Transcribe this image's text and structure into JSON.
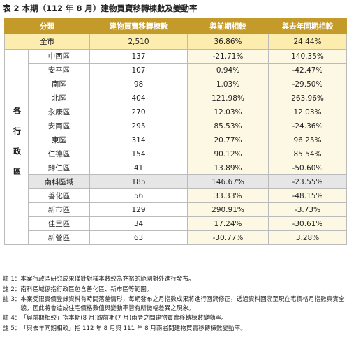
{
  "title": "表 2 本期（112 年 8 月）建物買賣移轉棟數及變動率",
  "table": {
    "headers": [
      "分類",
      "建物買賣移轉棟數",
      "與前期相較",
      "與去年同期相較"
    ],
    "total_row": [
      "全市",
      "2,510",
      "36.86%",
      "24.44%"
    ],
    "group_label": "各行政區",
    "rows": [
      [
        "中西區",
        "137",
        "-21.71%",
        "140.35%"
      ],
      [
        "安平區",
        "107",
        "0.94%",
        "-42.47%"
      ],
      [
        "南區",
        "98",
        "1.03%",
        "-29.50%"
      ],
      [
        "北區",
        "404",
        "121.98%",
        "263.96%"
      ],
      [
        "永康區",
        "270",
        "12.03%",
        "12.03%"
      ],
      [
        "安南區",
        "295",
        "85.53%",
        "-24.36%"
      ],
      [
        "東區",
        "314",
        "20.77%",
        "96.25%"
      ],
      [
        "仁德區",
        "154",
        "90.12%",
        "85.54%"
      ],
      [
        "歸仁區",
        "41",
        "13.89%",
        "-50.60%"
      ],
      [
        "南科區域",
        "185",
        "146.67%",
        "-23.55%"
      ],
      [
        "善化區",
        "56",
        "33.33%",
        "-48.15%"
      ],
      [
        "新市區",
        "129",
        "290.91%",
        "-3.73%"
      ],
      [
        "佳里區",
        "34",
        "17.24%",
        "-30.61%"
      ],
      [
        "新營區",
        "63",
        "-30.77%",
        "3.28%"
      ]
    ]
  },
  "notes": [
    [
      "註 1：",
      "本案行政區研究成果僅針對樣本數較為充裕的範圍對外進行發布。"
    ],
    [
      "註 2：",
      "南科區域係指行政區包含善化區、新市區等範圍。"
    ],
    [
      "註 3：",
      "本案受限實價登錄資料有時間落差情形，每期發布之月指數成果將進行回溯修正，透過資料回溯至現在宅價格月指數真實全貌，因此將會造成住宅價格數值與變動率皆有所微幅差異之現象。"
    ],
    [
      "註 4：",
      "「與前期相較」指本期(8 月)跟前期(7 月)兩者之間建物買賣移轉棟數變動率。"
    ],
    [
      "註 5：",
      "「與去年同期相較」指 112 年 8 月與 111 年 8 月兩者間建物買賣移轉棟數變動率。"
    ]
  ]
}
